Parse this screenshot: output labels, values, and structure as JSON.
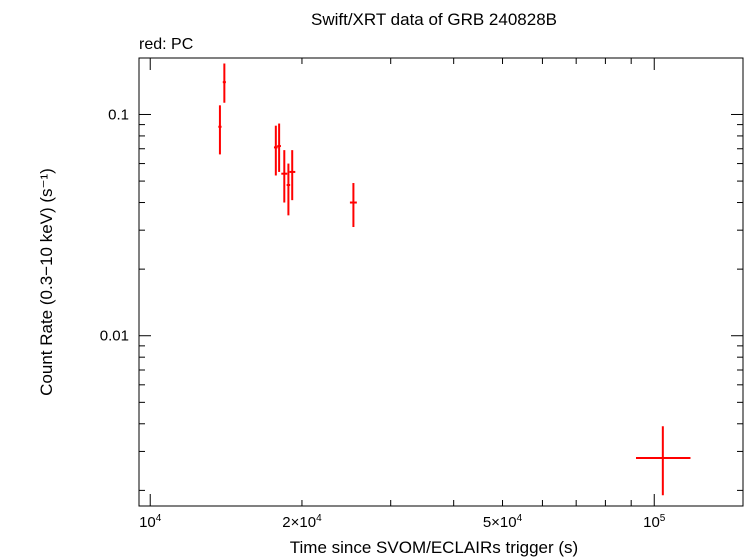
{
  "chart_data": {
    "type": "scatter",
    "title": "Swift/XRT data of GRB 240828B",
    "subtitle": "red: PC",
    "xlabel": "Time since SVOM/ECLAIRs trigger (s)",
    "ylabel": "Count Rate (0.3−10 keV) (s⁻¹)",
    "xscale": "log",
    "yscale": "log",
    "xlim": [
      9500,
      150000
    ],
    "ylim": [
      0.0017,
      0.18
    ],
    "x_ticks": [
      {
        "value": 10000,
        "base": "10",
        "exp": "4",
        "mult": ""
      },
      {
        "value": 20000,
        "base": "10",
        "exp": "4",
        "mult": "2×"
      },
      {
        "value": 50000,
        "base": "10",
        "exp": "4",
        "mult": "5×"
      },
      {
        "value": 100000,
        "base": "10",
        "exp": "5",
        "mult": ""
      }
    ],
    "y_ticks": [
      {
        "value": 0.1,
        "label": "0.1"
      },
      {
        "value": 0.01,
        "label": "0.01"
      }
    ],
    "grid": false,
    "series": [
      {
        "color": "#ff0000",
        "points": [
          {
            "x": 13750,
            "x_lo": 13650,
            "x_hi": 13850,
            "y": 0.088,
            "y_lo": 0.066,
            "y_hi": 0.11
          },
          {
            "x": 14030,
            "x_lo": 13930,
            "x_hi": 14130,
            "y": 0.14,
            "y_lo": 0.113,
            "y_hi": 0.17
          },
          {
            "x": 17750,
            "x_lo": 17600,
            "x_hi": 17900,
            "y": 0.071,
            "y_lo": 0.053,
            "y_hi": 0.089
          },
          {
            "x": 18020,
            "x_lo": 17870,
            "x_hi": 18170,
            "y": 0.072,
            "y_lo": 0.055,
            "y_hi": 0.091
          },
          {
            "x": 18450,
            "x_lo": 18200,
            "x_hi": 18700,
            "y": 0.054,
            "y_lo": 0.04,
            "y_hi": 0.069
          },
          {
            "x": 18800,
            "x_lo": 18650,
            "x_hi": 18950,
            "y": 0.048,
            "y_lo": 0.035,
            "y_hi": 0.06
          },
          {
            "x": 19130,
            "x_lo": 18900,
            "x_hi": 19400,
            "y": 0.055,
            "y_lo": 0.041,
            "y_hi": 0.069
          },
          {
            "x": 25300,
            "x_lo": 24900,
            "x_hi": 25700,
            "y": 0.04,
            "y_lo": 0.031,
            "y_hi": 0.049
          },
          {
            "x": 104000,
            "x_lo": 92000,
            "x_hi": 118000,
            "y": 0.0028,
            "y_lo": 0.0019,
            "y_hi": 0.0039
          }
        ]
      }
    ]
  }
}
